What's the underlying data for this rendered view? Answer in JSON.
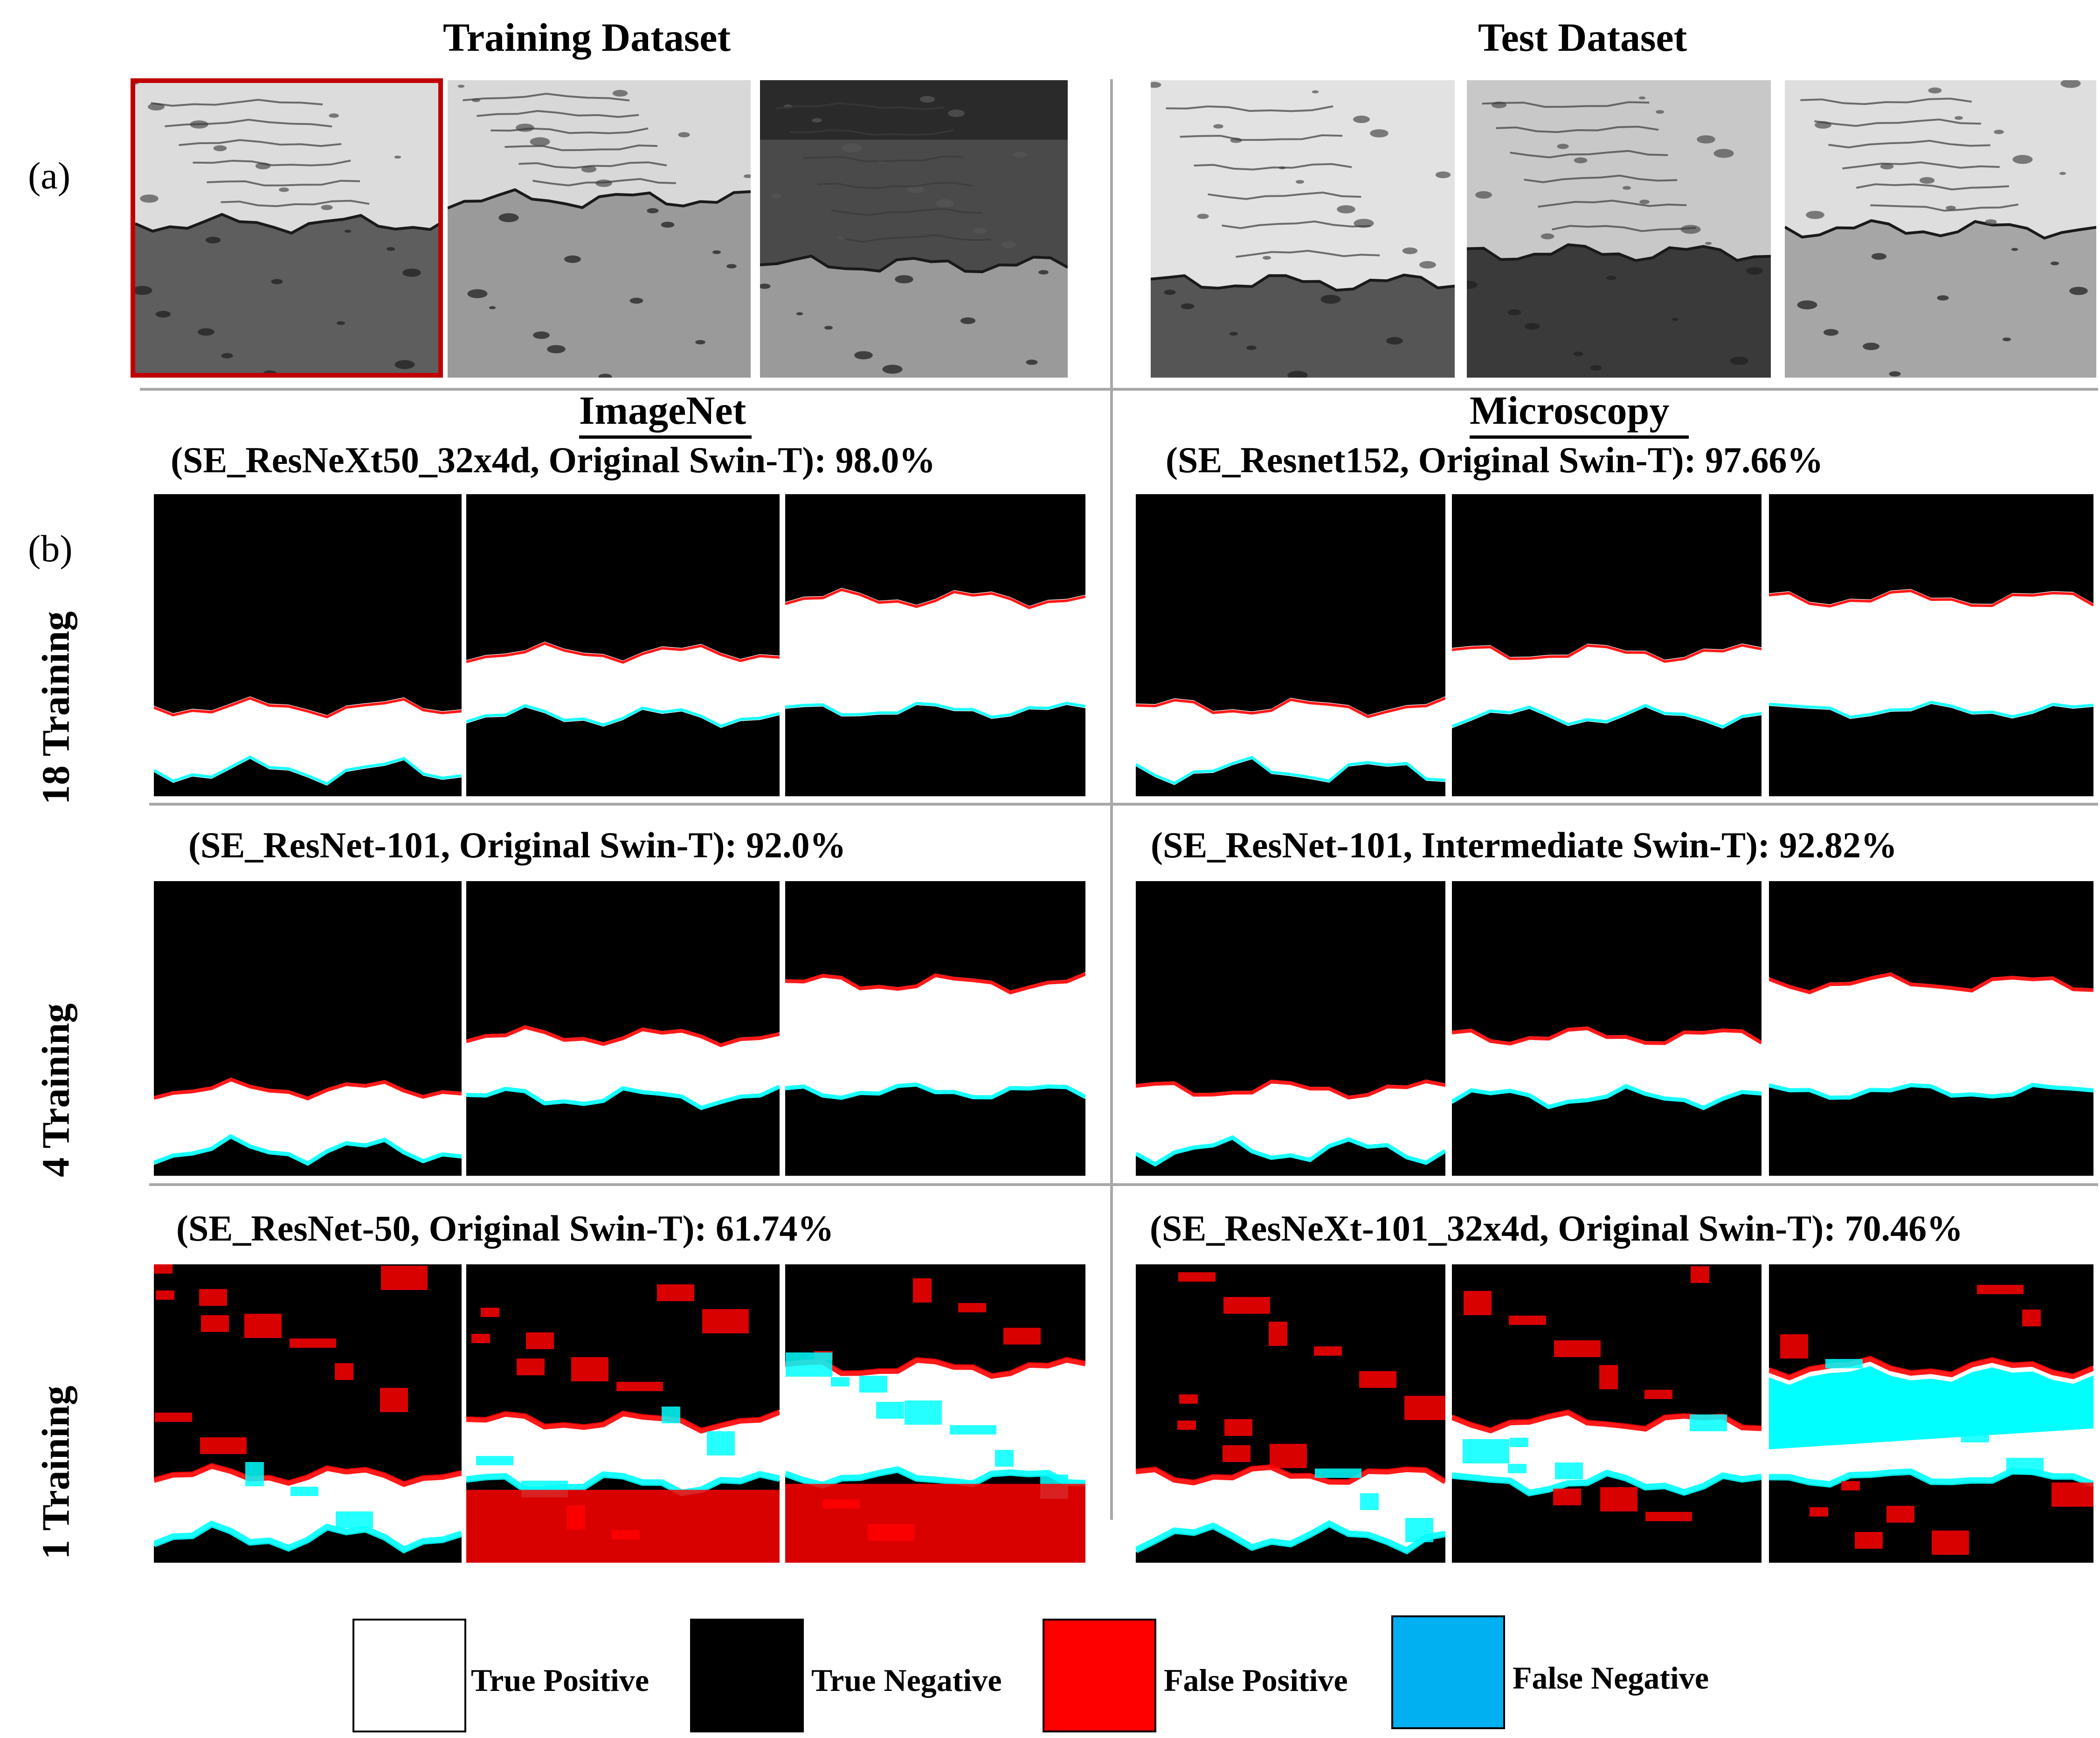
{
  "panel_a": {
    "label": "(a)",
    "training_header": "Training Dataset",
    "test_header": "Test Dataset"
  },
  "panel_b": {
    "label": "(b)",
    "imagenet_header": "ImageNet",
    "microscopy_header": "Microscopy",
    "rows": [
      {
        "label": "18 Training",
        "imagenet_caption": "(SE_ResNeXt50_32x4d, Original Swin-T): 98.0%",
        "microscopy_caption": "(SE_Resnet152, Original Swin-T): 97.66%"
      },
      {
        "label": "4 Training",
        "imagenet_caption": "(SE_ResNet-101, Original Swin-T): 92.0%",
        "microscopy_caption": "(SE_ResNet-101, Intermediate Swin-T): 92.82%"
      },
      {
        "label": "1 Training",
        "imagenet_caption": "(SE_ResNet-50, Original Swin-T): 61.74%",
        "microscopy_caption": "(SE_ResNeXt-101_32x4d, Original Swin-T): 70.46%"
      }
    ]
  },
  "legend": [
    {
      "label": "True Positive",
      "color": "#ffffff"
    },
    {
      "label": "True Negative",
      "color": "#000000"
    },
    {
      "label": "False Positive",
      "color": "#ff0000"
    },
    {
      "label": "False Negative",
      "color": "#00b0f0"
    }
  ],
  "colors": {
    "highlight_border": "#c00000",
    "false_negative_mask": "#00ffff",
    "divider": "#a8a8a8"
  }
}
